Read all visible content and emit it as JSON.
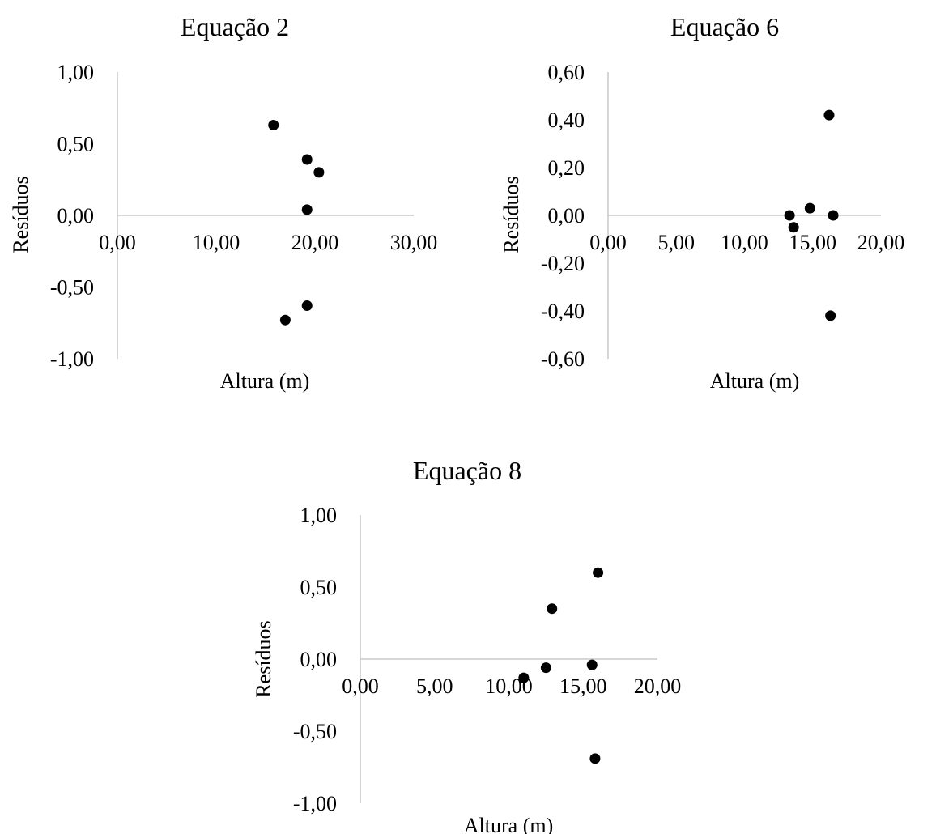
{
  "colors": {
    "axis": "#bfbfbf",
    "marker": "#000000",
    "text": "#000000",
    "background": "#ffffff"
  },
  "chart_data": [
    {
      "type": "scatter",
      "title": "Equação 2",
      "xlabel": "Altura (m)",
      "ylabel": "Resíduos",
      "xlim": [
        0,
        30
      ],
      "ylim": [
        -1,
        1
      ],
      "x_ticks": [
        "0,00",
        "10,00",
        "20,00",
        "30,00"
      ],
      "y_ticks": [
        "1,00",
        "0,50",
        "0,00",
        "-0,50",
        "-1,00"
      ],
      "grid": false,
      "legend": "none",
      "series": [
        {
          "points": [
            {
              "x": 15.8,
              "y": 0.63
            },
            {
              "x": 19.2,
              "y": 0.39
            },
            {
              "x": 20.4,
              "y": 0.3
            },
            {
              "x": 19.2,
              "y": 0.04
            },
            {
              "x": 19.2,
              "y": -0.63
            },
            {
              "x": 17.0,
              "y": -0.73
            }
          ]
        }
      ]
    },
    {
      "type": "scatter",
      "title": "Equação 6",
      "xlabel": "Altura (m)",
      "ylabel": "Resíduos",
      "xlim": [
        0,
        20
      ],
      "ylim": [
        -0.6,
        0.6
      ],
      "x_ticks": [
        "0,00",
        "5,00",
        "10,00",
        "15,00",
        "20,00"
      ],
      "y_ticks": [
        "0,60",
        "0,40",
        "0,20",
        "0,00",
        "-0,20",
        "-0,40",
        "-0,60"
      ],
      "grid": false,
      "legend": "none",
      "series": [
        {
          "points": [
            {
              "x": 16.2,
              "y": 0.42
            },
            {
              "x": 14.8,
              "y": 0.03
            },
            {
              "x": 13.3,
              "y": 0.0
            },
            {
              "x": 16.5,
              "y": 0.0
            },
            {
              "x": 13.6,
              "y": -0.05
            },
            {
              "x": 16.3,
              "y": -0.42
            }
          ]
        }
      ]
    },
    {
      "type": "scatter",
      "title": "Equação 8",
      "xlabel": "Altura (m)",
      "ylabel": "Resíduos",
      "xlim": [
        0,
        20
      ],
      "ylim": [
        -1,
        1
      ],
      "x_ticks": [
        "0,00",
        "5,00",
        "10,00",
        "15,00",
        "20,00"
      ],
      "y_ticks": [
        "1,00",
        "0,50",
        "0,00",
        "-0,50",
        "-1,00"
      ],
      "grid": false,
      "legend": "none",
      "series": [
        {
          "points": [
            {
              "x": 16.0,
              "y": 0.6
            },
            {
              "x": 12.9,
              "y": 0.35
            },
            {
              "x": 15.6,
              "y": -0.04
            },
            {
              "x": 12.5,
              "y": -0.06
            },
            {
              "x": 11.0,
              "y": -0.13
            },
            {
              "x": 15.8,
              "y": -0.69
            }
          ]
        }
      ]
    }
  ]
}
